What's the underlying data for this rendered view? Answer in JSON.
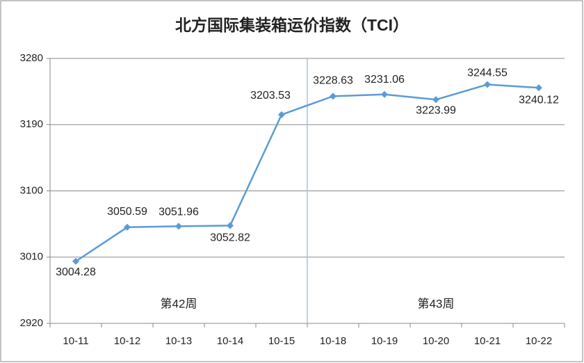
{
  "chart_data": {
    "type": "line",
    "title": "北方国际集装箱运价指数（TCI）",
    "categories": [
      "10-11",
      "10-12",
      "10-13",
      "10-14",
      "10-15",
      "10-18",
      "10-19",
      "10-20",
      "10-21",
      "10-22"
    ],
    "series": [
      {
        "name": "TCI",
        "color": "#5b9bd5",
        "values": [
          3004.28,
          3050.59,
          3051.96,
          3052.82,
          3203.53,
          3228.63,
          3231.06,
          3223.99,
          3244.55,
          3240.12
        ]
      }
    ],
    "ylim": [
      2920,
      3280
    ],
    "yticks": [
      2920,
      3010,
      3100,
      3190,
      3280
    ],
    "grid": true,
    "annotations": [
      "第42周",
      "第43周"
    ]
  }
}
